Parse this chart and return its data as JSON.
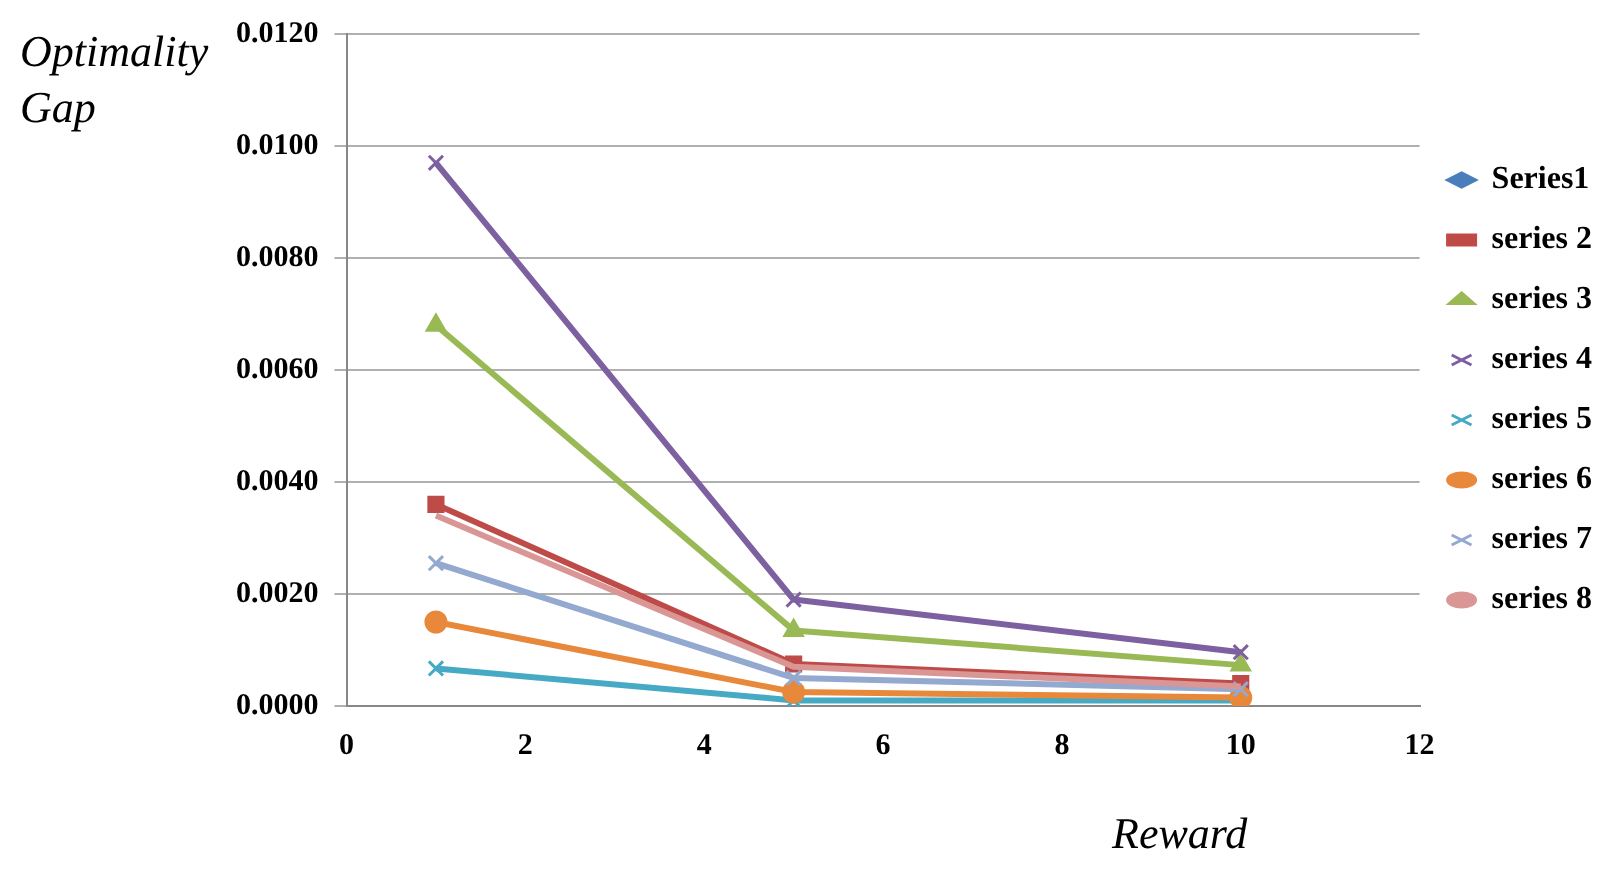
{
  "chart_data": {
    "type": "line",
    "xlabel": "Reward",
    "ylabel": "Optimality Gap",
    "x": [
      1,
      5,
      10
    ],
    "xlim": [
      0,
      12
    ],
    "xticks": [
      0,
      2,
      4,
      6,
      8,
      10,
      12
    ],
    "ylim": [
      0,
      0.012
    ],
    "yticks": [
      {
        "value": 0,
        "label": "0.0000"
      },
      {
        "value": 0.002,
        "label": "0.0020"
      },
      {
        "value": 0.004,
        "label": "0.0040"
      },
      {
        "value": 0.006,
        "label": "0.0060"
      },
      {
        "value": 0.008,
        "label": "0.0080"
      },
      {
        "value": 0.01,
        "label": "0.0100"
      },
      {
        "value": 0.012,
        "label": "0.0120"
      }
    ],
    "grid": "y",
    "legend": "right",
    "line_style": "solid",
    "series": [
      {
        "name": "Series1",
        "color": "#4a7ebb",
        "marker": "diamond",
        "values": [
          null,
          null,
          null
        ]
      },
      {
        "name": "series 2",
        "color": "#be4b48",
        "marker": "square",
        "values": [
          0.0036,
          0.00075,
          0.0004
        ]
      },
      {
        "name": "series 3",
        "color": "#98b954",
        "marker": "triangle",
        "values": [
          0.0068,
          0.00135,
          0.00073
        ]
      },
      {
        "name": "series 4",
        "color": "#7d60a0",
        "marker": "cross",
        "values": [
          0.0097,
          0.0019,
          0.00096
        ]
      },
      {
        "name": "series 5",
        "color": "#46aac5",
        "marker": "cross",
        "values": [
          0.00067,
          0.0001,
          0.0001
        ]
      },
      {
        "name": "series 6",
        "color": "#e8883a",
        "marker": "circle",
        "values": [
          0.0015,
          0.00025,
          0.00015
        ]
      },
      {
        "name": "series 7",
        "color": "#93a9cf",
        "marker": "cross",
        "values": [
          0.00255,
          0.0005,
          0.0003
        ]
      },
      {
        "name": "series 8",
        "color": "#d99694",
        "marker": "none",
        "values": [
          0.0034,
          0.0007,
          0.00035
        ]
      }
    ]
  }
}
